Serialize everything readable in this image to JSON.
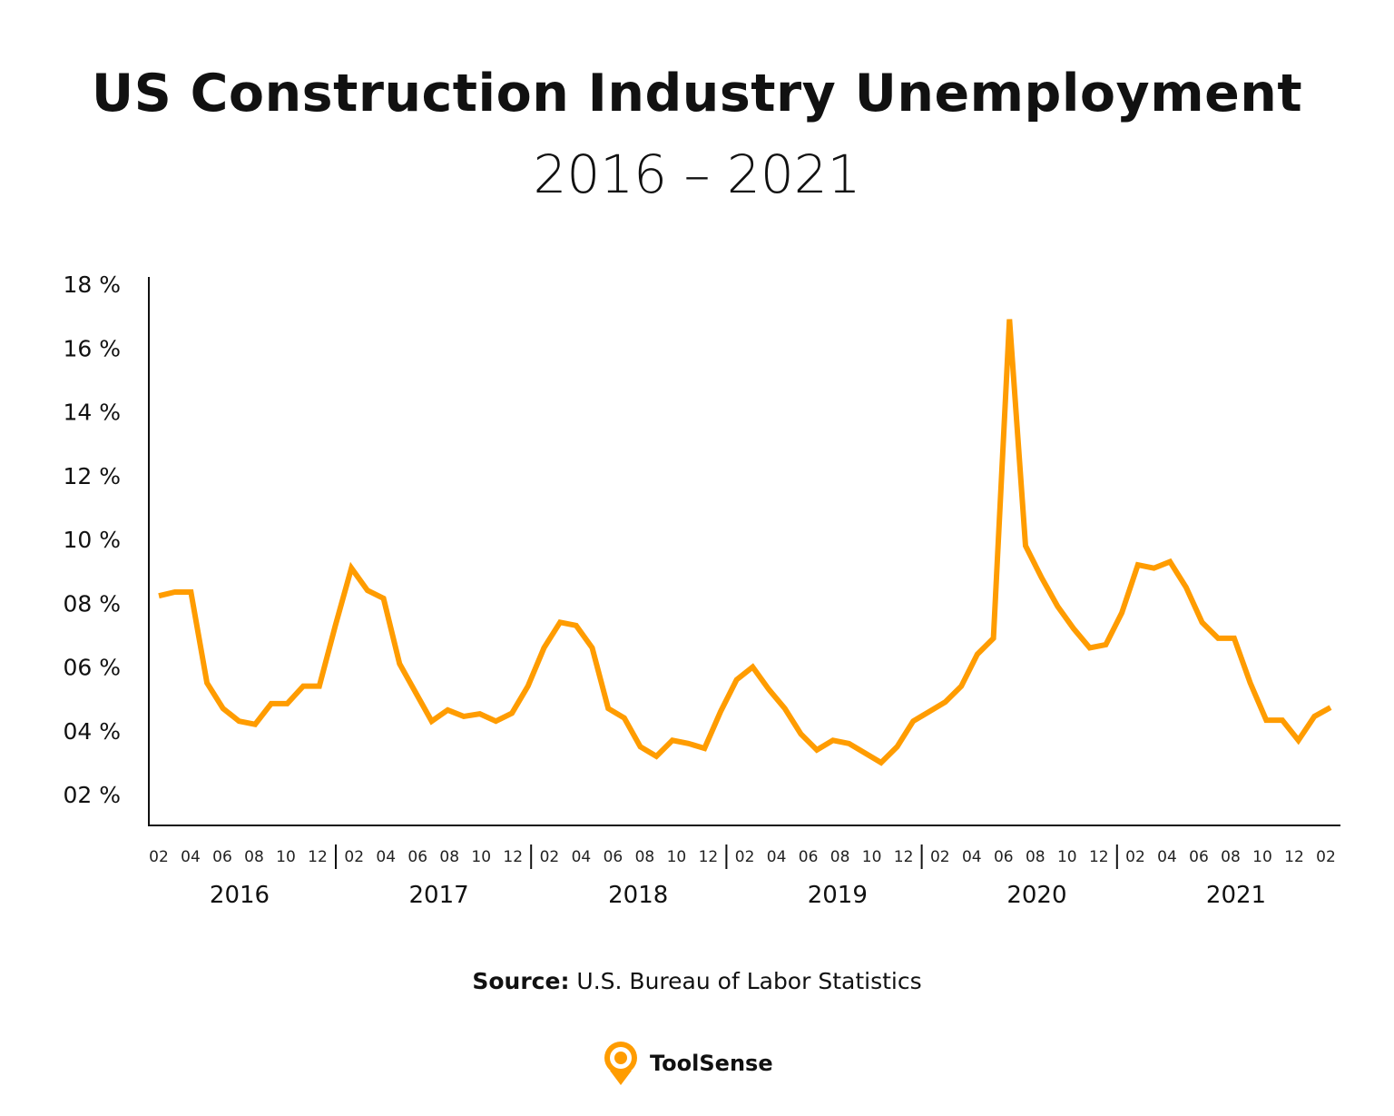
{
  "title": "US Construction Industry Unemployment",
  "subtitle": "2016 – 2021",
  "source_label": "Source:",
  "source_text": "U.S. Bureau of Labor Statistics",
  "brand": "ToolSense",
  "colors": {
    "line": "#FF9C00",
    "axis": "#111111",
    "logo": "#FF9C00"
  },
  "chart_data": {
    "type": "line",
    "title": "US Construction Industry Unemployment",
    "subtitle": "2016 – 2021",
    "ylim": [
      1,
      18
    ],
    "yticks": [
      2,
      4,
      6,
      8,
      10,
      12,
      14,
      16,
      18
    ],
    "ytick_labels": [
      "02 %",
      "04 %",
      "06 %",
      "08 %",
      "10 %",
      "12 %",
      "14 %",
      "16 %",
      "18 %"
    ],
    "grid": false,
    "legend": "none",
    "year_labels": [
      "2016",
      "2017",
      "2018",
      "2019",
      "2020",
      "2021"
    ],
    "month_tick_labels": [
      [
        "02",
        "04",
        "06",
        "08",
        "10",
        "12"
      ],
      [
        "02",
        "04",
        "06",
        "08",
        "10",
        "12"
      ],
      [
        "02",
        "04",
        "06",
        "08",
        "10",
        "12"
      ],
      [
        "02",
        "04",
        "06",
        "08",
        "10",
        "12"
      ],
      [
        "02",
        "04",
        "06",
        "08",
        "10",
        "12"
      ],
      [
        "02",
        "04",
        "06",
        "08",
        "10",
        "12",
        "02"
      ]
    ],
    "series": [
      {
        "color": "#FF9C00",
        "values": [
          8.23,
          8.35,
          8.35,
          5.5,
          4.7,
          4.3,
          4.2,
          4.85,
          4.85,
          5.4,
          5.4,
          7.3,
          9.1,
          8.4,
          8.15,
          6.1,
          5.2,
          4.3,
          4.65,
          4.45,
          4.53,
          4.3,
          4.55,
          5.4,
          6.6,
          7.4,
          7.3,
          6.6,
          4.7,
          4.4,
          3.5,
          3.2,
          3.7,
          3.6,
          3.45,
          4.6,
          5.6,
          6.0,
          5.3,
          4.7,
          3.9,
          3.4,
          3.7,
          3.6,
          3.3,
          3.0,
          3.5,
          4.3,
          4.6,
          4.9,
          5.4,
          6.4,
          6.9,
          16.9,
          9.8,
          8.8,
          7.9,
          7.2,
          6.6,
          6.7,
          7.7,
          9.2,
          9.1,
          9.3,
          8.5,
          7.4,
          6.9,
          6.9,
          5.5,
          4.33,
          4.33,
          3.7,
          4.45,
          4.73
        ]
      }
    ]
  }
}
